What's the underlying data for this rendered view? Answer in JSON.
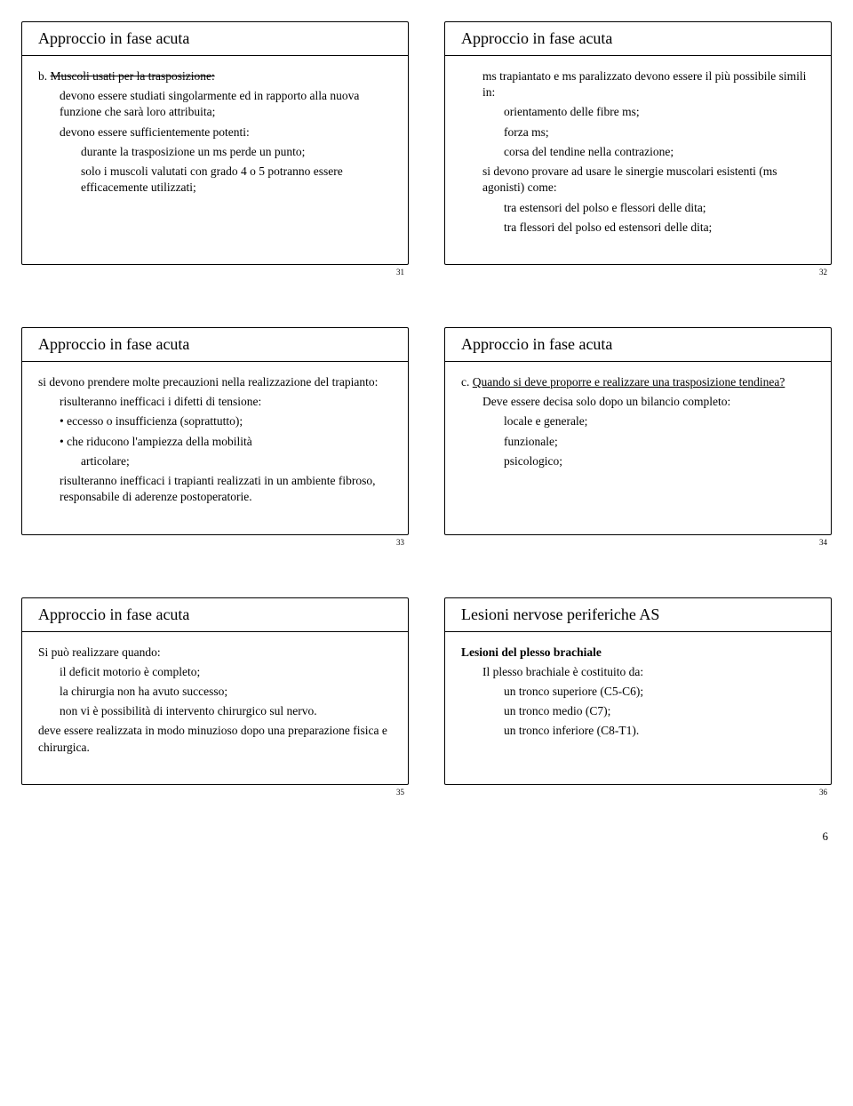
{
  "page_number": "6",
  "slides": [
    {
      "title": "Approccio in fase acuta",
      "num": "31",
      "lines": [
        {
          "lvl": "lvl1",
          "pre": "b. ",
          "strike": "Muscoli usati per la trasposizione:",
          "post": ""
        },
        {
          "lvl": "lvl2",
          "text": "devono essere studiati singolarmente ed in rapporto alla nuova funzione che sarà loro attribuita;"
        },
        {
          "lvl": "lvl2",
          "text": "devono essere sufficientemente potenti:"
        },
        {
          "lvl": "lvl3",
          "text": "durante la trasposizione un ms perde un punto;"
        },
        {
          "lvl": "lvl3",
          "text": "solo i muscoli valutati con grado 4 o 5 potranno essere efficacemente utilizzati;"
        }
      ]
    },
    {
      "title": "Approccio in fase acuta",
      "num": "32",
      "lines": [
        {
          "lvl": "lvl2",
          "text": "ms trapiantato e ms paralizzato devono essere il più possibile simili in:"
        },
        {
          "lvl": "lvl3",
          "text": "orientamento delle fibre ms;"
        },
        {
          "lvl": "lvl3",
          "text": "forza ms;"
        },
        {
          "lvl": "lvl3",
          "text": "corsa del tendine nella contrazione;"
        },
        {
          "lvl": "lvl2",
          "text": "si devono provare ad usare le sinergie muscolari esistenti (ms agonisti) come:"
        },
        {
          "lvl": "lvl3",
          "text": "tra estensori del polso e flessori delle dita;"
        },
        {
          "lvl": "lvl3",
          "text": "tra flessori del polso ed estensori delle dita;"
        }
      ]
    },
    {
      "title": "Approccio in fase acuta",
      "num": "33",
      "lines": [
        {
          "lvl": "lvl1",
          "text": "si devono prendere molte precauzioni nella realizzazione del trapianto:"
        },
        {
          "lvl": "lvl2",
          "text": "risulteranno inefficaci i difetti di tensione:"
        },
        {
          "lvl": "lvl2",
          "text": "• eccesso o insufficienza (soprattutto);"
        },
        {
          "lvl": "lvl2",
          "text": "• che riducono l'ampiezza della mobilità"
        },
        {
          "lvl": "lvl3",
          "text": "articolare;"
        },
        {
          "lvl": "lvl2",
          "text": "risulteranno inefficaci i trapianti realizzati in un ambiente fibroso, responsabile di aderenze postoperatorie."
        }
      ]
    },
    {
      "title": "Approccio in fase acuta",
      "num": "34",
      "lines": [
        {
          "lvl": "lvl1",
          "pre": "c. ",
          "under": "Quando si deve proporre e realizzare una trasposizione tendinea?"
        },
        {
          "lvl": "lvl2",
          "text": "Deve essere decisa solo dopo un bilancio completo:"
        },
        {
          "lvl": "lvl3",
          "text": "locale e generale;"
        },
        {
          "lvl": "lvl3",
          "text": "funzionale;"
        },
        {
          "lvl": "lvl3",
          "text": "psicologico;"
        }
      ]
    },
    {
      "title": "Approccio in fase acuta",
      "num": "35",
      "lines": [
        {
          "lvl": "lvl1",
          "text": "Si può realizzare quando:"
        },
        {
          "lvl": "lvl2",
          "text": "il deficit motorio è completo;"
        },
        {
          "lvl": "lvl2",
          "text": "la chirurgia non ha avuto successo;"
        },
        {
          "lvl": "lvl2",
          "text": "non vi è possibilità di intervento chirurgico sul nervo."
        },
        {
          "lvl": "lvl1",
          "text": "deve essere realizzata in modo minuzioso dopo una preparazione fisica e chirurgica."
        }
      ]
    },
    {
      "title": "Lesioni nervose periferiche AS",
      "num": "36",
      "lines": [
        {
          "lvl": "lvl1",
          "bold": true,
          "text": "Lesioni del plesso brachiale"
        },
        {
          "lvl": "lvl2",
          "text": "Il plesso brachiale è costituito da:"
        },
        {
          "lvl": "lvl3",
          "text": "un tronco superiore (C5-C6);"
        },
        {
          "lvl": "lvl3",
          "text": "un tronco medio (C7);"
        },
        {
          "lvl": "lvl3",
          "text": "un tronco inferiore (C8-T1)."
        }
      ]
    }
  ]
}
